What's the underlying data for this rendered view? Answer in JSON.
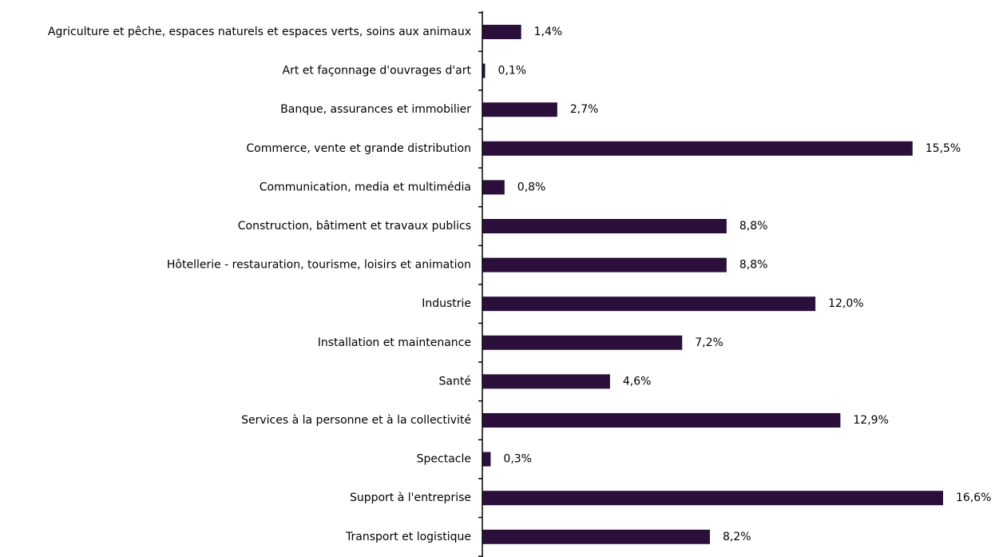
{
  "chart_data": {
    "type": "bar",
    "orientation": "horizontal",
    "title": "",
    "xlabel": "",
    "ylabel": "",
    "grid": false,
    "bar_color": "#2a0f3a",
    "categories": [
      "Agriculture et pêche, espaces naturels et espaces verts, soins aux animaux",
      "Art et façonnage d'ouvrages d'art",
      "Banque, assurances et immobilier",
      "Commerce, vente et grande distribution",
      "Communication, media et multimédia",
      "Construction, bâtiment et travaux publics",
      "Hôtellerie - restauration, tourisme, loisirs et animation",
      "Industrie",
      "Installation et maintenance",
      "Santé",
      "Services à la personne et à la collectivité",
      "Spectacle",
      "Support à l'entreprise",
      "Transport et logistique"
    ],
    "values": [
      1.4,
      0.1,
      2.7,
      15.5,
      0.8,
      8.8,
      8.8,
      12.0,
      7.2,
      4.6,
      12.9,
      0.3,
      16.6,
      8.2
    ],
    "value_labels": [
      "1,4%",
      "0,1%",
      "2,7%",
      "15,5%",
      "0,8%",
      "8,8%",
      "8,8%",
      "12,0%",
      "7,2%",
      "4,6%",
      "12,9%",
      "0,3%",
      "16,6%",
      "8,2%"
    ],
    "xlim": [
      0,
      16.6
    ]
  }
}
